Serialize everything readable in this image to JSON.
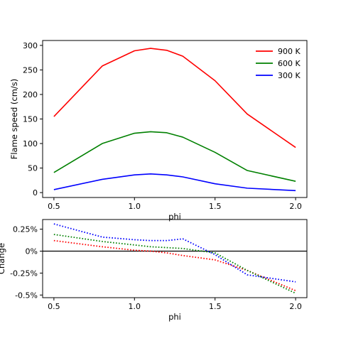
{
  "chart_data": [
    {
      "type": "line",
      "xlabel": "phi",
      "ylabel": "Flame speed (cm/s)",
      "xlim": [
        0.43,
        2.07
      ],
      "ylim": [
        -10,
        310
      ],
      "xticks": [
        0.5,
        1.0,
        1.5,
        2.0
      ],
      "xtick_labels": [
        "0.5",
        "1.0",
        "1.5",
        "2.0"
      ],
      "yticks": [
        0,
        50,
        100,
        150,
        200,
        250,
        300
      ],
      "ytick_labels": [
        "0",
        "50",
        "100",
        "150",
        "200",
        "250",
        "300"
      ],
      "grid": false,
      "legend_position": "top-right",
      "x": [
        0.5,
        0.8,
        1.0,
        1.1,
        1.2,
        1.3,
        1.5,
        1.7,
        2.0
      ],
      "series": [
        {
          "name": "900 K",
          "color": "#ff0000",
          "values": [
            155,
            258,
            289,
            294,
            290,
            278,
            228,
            160,
            92
          ]
        },
        {
          "name": "600 K",
          "color": "#008000",
          "values": [
            41,
            100,
            121,
            124,
            122,
            113,
            82,
            45,
            23
          ]
        },
        {
          "name": "300 K",
          "color": "#0000ff",
          "values": [
            6,
            27,
            36,
            38,
            36,
            32,
            18,
            9,
            4
          ]
        }
      ]
    },
    {
      "type": "line",
      "xlabel": "phi",
      "ylabel": "Change",
      "xlim": [
        0.43,
        2.07
      ],
      "ylim": [
        -0.53,
        0.36
      ],
      "xticks": [
        0.5,
        1.0,
        1.5,
        2.0
      ],
      "xtick_labels": [
        "0.5",
        "1.0",
        "1.5",
        "2.0"
      ],
      "yticks": [
        -0.5,
        -0.25,
        0.0,
        0.25
      ],
      "ytick_labels": [
        "-0.5%",
        "-0.25%",
        "0%",
        "0.25%"
      ],
      "grid": false,
      "reference_line": 0,
      "line_style": "dotted",
      "x": [
        0.5,
        0.8,
        1.0,
        1.1,
        1.2,
        1.3,
        1.5,
        1.7,
        2.0
      ],
      "series": [
        {
          "color": "#ff0000",
          "values": [
            0.12,
            0.05,
            0.01,
            0.0,
            -0.02,
            -0.05,
            -0.1,
            -0.22,
            -0.45
          ]
        },
        {
          "color": "#008000",
          "values": [
            0.19,
            0.11,
            0.07,
            0.05,
            0.04,
            0.03,
            -0.02,
            -0.22,
            -0.48
          ]
        },
        {
          "color": "#0000ff",
          "values": [
            0.31,
            0.16,
            0.13,
            0.12,
            0.12,
            0.14,
            -0.04,
            -0.27,
            -0.35
          ]
        }
      ]
    }
  ]
}
